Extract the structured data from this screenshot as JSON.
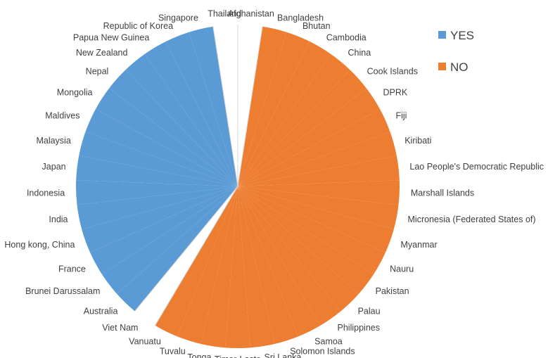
{
  "chart_data": {
    "type": "pie",
    "title": "",
    "legend": {
      "position": "right",
      "entries": [
        {
          "label": "YES",
          "color": "#5B9BD5"
        },
        {
          "label": "NO",
          "color": "#ED7D31"
        }
      ]
    },
    "colors": {
      "YES": "#5B9BD5",
      "NO": "#ED7D31",
      "unanswered": "#FFFFFF",
      "divider": "#D9D9D9"
    },
    "slices": [
      {
        "category": "Afghanistan",
        "series": "none"
      },
      {
        "category": "Bangladesh",
        "series": "NO"
      },
      {
        "category": "Bhutan",
        "series": "NO"
      },
      {
        "category": "Cambodia",
        "series": "NO"
      },
      {
        "category": "China",
        "series": "NO"
      },
      {
        "category": "Cook Islands",
        "series": "NO"
      },
      {
        "category": "DPRK",
        "series": "NO"
      },
      {
        "category": "Fiji",
        "series": "NO"
      },
      {
        "category": "Kiribati",
        "series": "NO"
      },
      {
        "category": "Lao People's Democratic Republic",
        "series": "NO"
      },
      {
        "category": "Marshall Islands",
        "series": "NO"
      },
      {
        "category": "Micronesia (Federated States of)",
        "series": "NO"
      },
      {
        "category": "Myanmar",
        "series": "NO"
      },
      {
        "category": "Nauru",
        "series": "NO"
      },
      {
        "category": "Pakistan",
        "series": "NO"
      },
      {
        "category": "Palau",
        "series": "NO"
      },
      {
        "category": "Philippines",
        "series": "NO"
      },
      {
        "category": "Samoa",
        "series": "NO"
      },
      {
        "category": "Solomon Islands",
        "series": "NO"
      },
      {
        "category": "Sri Lanka",
        "series": "NO"
      },
      {
        "category": "Timor-Leste",
        "series": "NO"
      },
      {
        "category": "Tonga",
        "series": "NO"
      },
      {
        "category": "Tuvalu",
        "series": "NO"
      },
      {
        "category": "Vanuatu",
        "series": "NO"
      },
      {
        "category": "Viet Nam",
        "series": "none"
      },
      {
        "category": "Australia",
        "series": "YES"
      },
      {
        "category": "Brunei Darussalam",
        "series": "YES"
      },
      {
        "category": "France",
        "series": "YES"
      },
      {
        "category": "Hong kong, China",
        "series": "YES"
      },
      {
        "category": "India",
        "series": "YES"
      },
      {
        "category": "Indonesia",
        "series": "YES"
      },
      {
        "category": "Japan",
        "series": "YES"
      },
      {
        "category": "Malaysia",
        "series": "YES"
      },
      {
        "category": "Maldives",
        "series": "YES"
      },
      {
        "category": "Mongolia",
        "series": "YES"
      },
      {
        "category": "Nepal",
        "series": "YES"
      },
      {
        "category": "New Zealand",
        "series": "YES"
      },
      {
        "category": "Papua New Guinea",
        "series": "YES"
      },
      {
        "category": "Republic of Korea",
        "series": "YES"
      },
      {
        "category": "Singapore",
        "series": "YES"
      },
      {
        "category": "Thailand",
        "series": "none"
      }
    ]
  }
}
